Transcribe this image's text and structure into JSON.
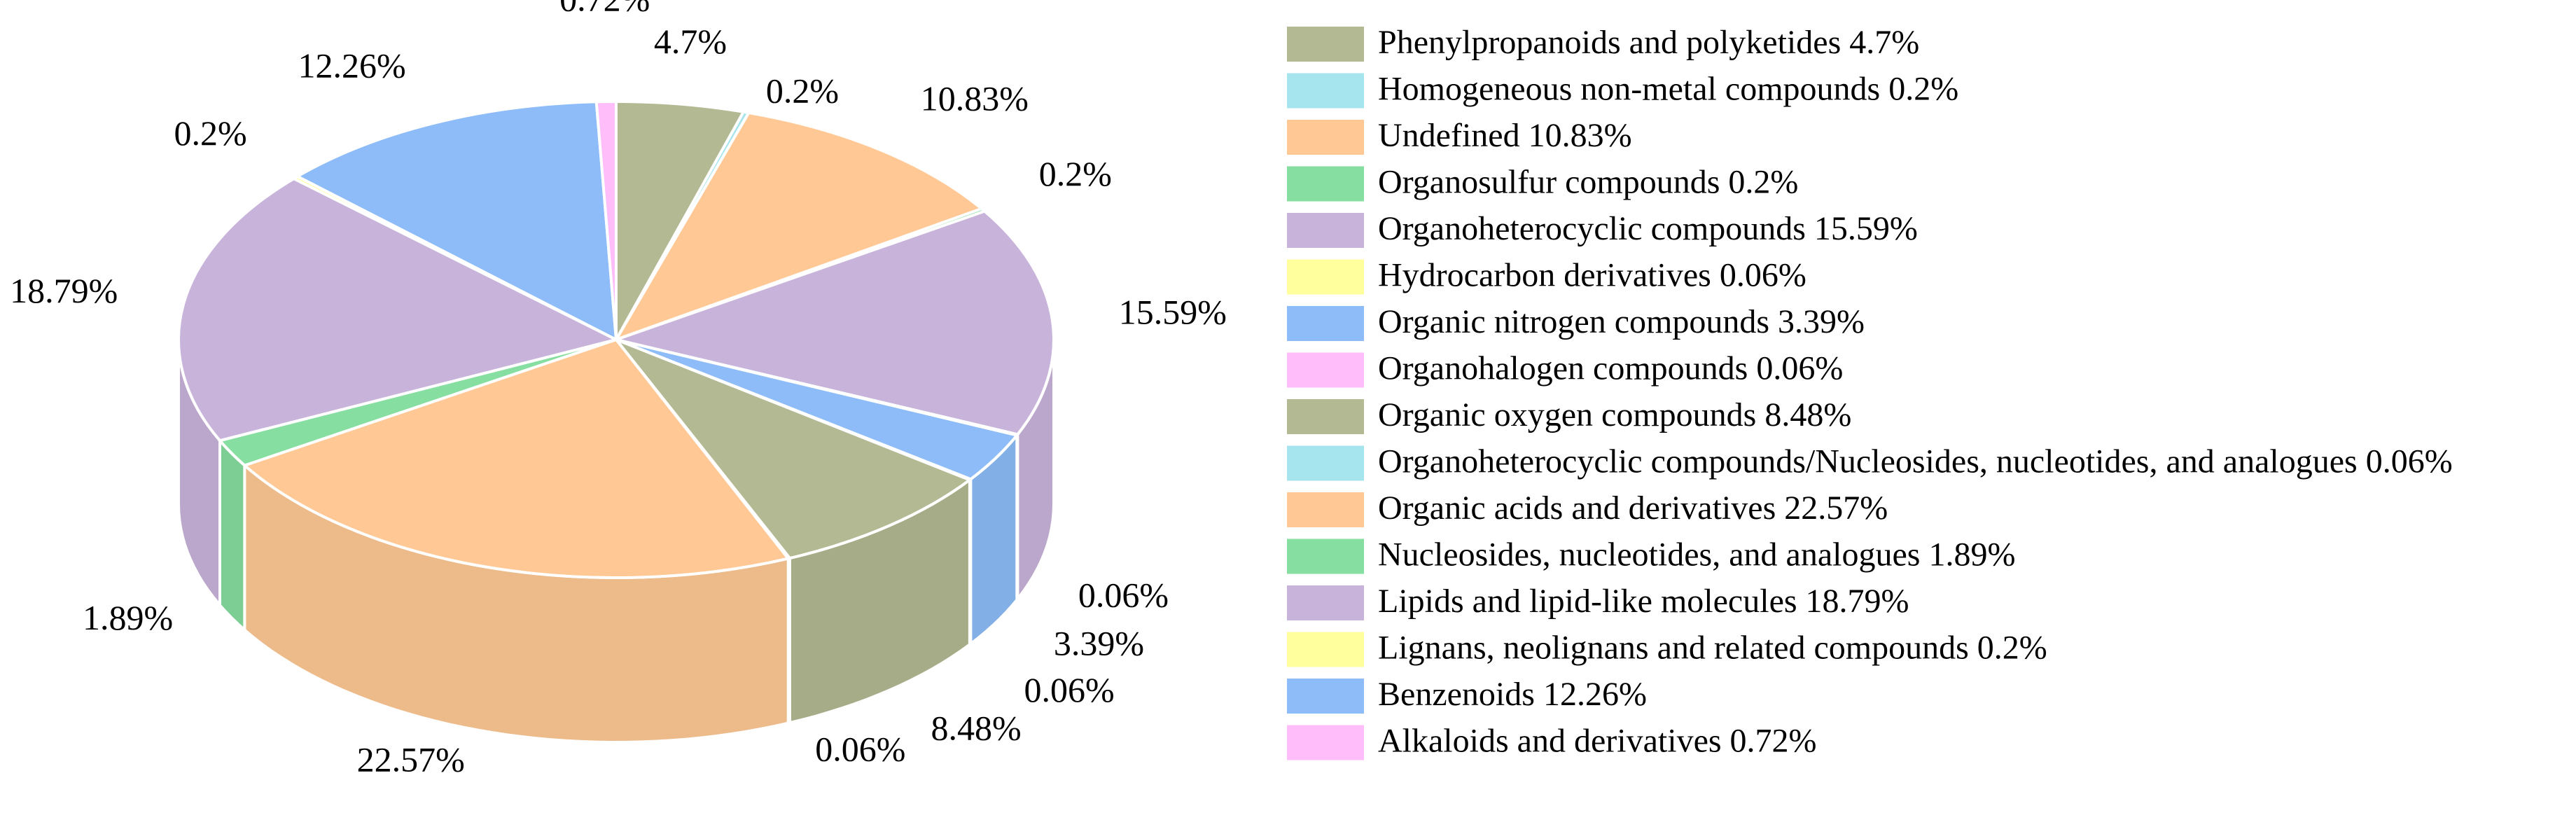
{
  "chart_data": {
    "type": "pie",
    "style": "3d-exploded-pie",
    "slices": [
      {
        "label": "Phenylpropanoids and polyketides",
        "value": 4.7,
        "display": "4.7%",
        "legend": "Phenylpropanoids and polyketides 4.7%",
        "color": "#b3b992"
      },
      {
        "label": "Homogeneous non-metal compounds",
        "value": 0.2,
        "display": "0.2%",
        "legend": "Homogeneous non-metal compounds 0.2%",
        "color": "#a6e4ee"
      },
      {
        "label": "Undefined",
        "value": 10.83,
        "display": "10.83%",
        "legend": "Undefined 10.83%",
        "color": "#ffc894"
      },
      {
        "label": "Organosulfur compounds",
        "value": 0.2,
        "display": "0.2%",
        "legend": "Organosulfur compounds 0.2%",
        "color": "#86dea0"
      },
      {
        "label": "Organoheterocyclic compounds",
        "value": 15.59,
        "display": "15.59%",
        "legend": "Organoheterocyclic compounds 15.59%",
        "color": "#c8b4da"
      },
      {
        "label": "Hydrocarbon derivatives",
        "value": 0.06,
        "display": "0.06%",
        "legend": "Hydrocarbon derivatives 0.06%",
        "color": "#ffff9e"
      },
      {
        "label": "Organic nitrogen compounds",
        "value": 3.39,
        "display": "3.39%",
        "legend": "Organic nitrogen compounds 3.39%",
        "color": "#8dbcf8"
      },
      {
        "label": "Organohalogen compounds",
        "value": 0.06,
        "display": "0.06%",
        "legend": "Organohalogen compounds 0.06%",
        "color": "#ffbdf9"
      },
      {
        "label": "Organic oxygen compounds",
        "value": 8.48,
        "display": "8.48%",
        "legend": "Organic oxygen compounds 8.48%",
        "color": "#b3b992"
      },
      {
        "label": "Organoheterocyclic compounds/Nucleosides, nucleotides, and analogues",
        "value": 0.06,
        "display": "0.06%",
        "legend": "Organoheterocyclic compounds/Nucleosides, nucleotides, and analogues 0.06%",
        "color": "#a6e4ee"
      },
      {
        "label": "Organic acids and derivatives",
        "value": 22.57,
        "display": "22.57%",
        "legend": "Organic acids and derivatives 22.57%",
        "color": "#ffc894"
      },
      {
        "label": "Nucleosides, nucleotides, and analogues",
        "value": 1.89,
        "display": "1.89%",
        "legend": "Nucleosides, nucleotides, and analogues 1.89%",
        "color": "#86dea0"
      },
      {
        "label": "Lipids and lipid-like molecules",
        "value": 18.79,
        "display": "18.79%",
        "legend": "Lipids and lipid-like molecules 18.79%",
        "color": "#c8b4da"
      },
      {
        "label": "Lignans, neolignans and related compounds",
        "value": 0.2,
        "display": "0.2%",
        "legend": "Lignans, neolignans and related compounds 0.2%",
        "color": "#ffff9e"
      },
      {
        "label": "Benzenoids",
        "value": 12.26,
        "display": "12.26%",
        "legend": "Benzenoids 12.26%",
        "color": "#8dbcf8"
      },
      {
        "label": "Alkaloids and derivatives",
        "value": 0.72,
        "display": "0.72%",
        "legend": "Alkaloids and derivatives 0.72%",
        "color": "#ffbdf9"
      }
    ],
    "legend_position": "right"
  }
}
